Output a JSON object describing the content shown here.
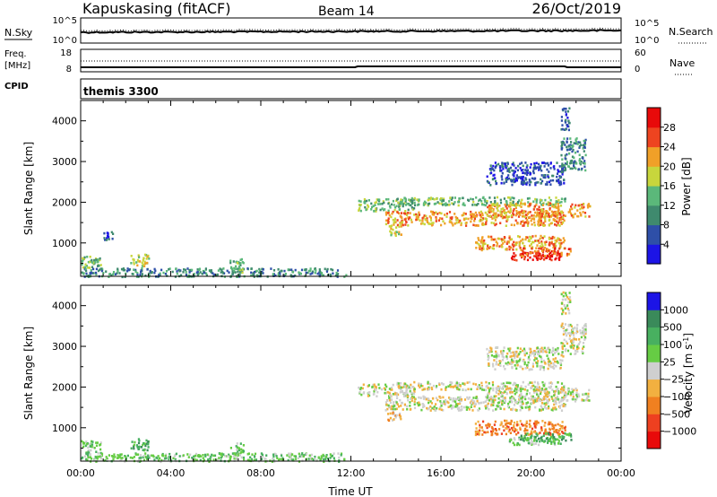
{
  "header": {
    "station": "Kapuskasing (fitACF)",
    "beam": "Beam 14",
    "date": "26/Oct/2019"
  },
  "noise_panel": {
    "left_label": "N.Sky",
    "left_ticks": [
      "10^5",
      "10^0"
    ],
    "right_ticks": [
      "10^5",
      "10^0"
    ],
    "right_label": "N.Search"
  },
  "freq_panel": {
    "label_top": "Freq.",
    "label_units": "[MHz]",
    "left_ticks": [
      "18",
      "8"
    ],
    "right_ticks": [
      "60",
      "0"
    ],
    "right_label": "Nave"
  },
  "cpid": {
    "label": "CPID",
    "value": "themis 3300"
  },
  "chart_data": [
    {
      "type": "heatmap",
      "quantity": "power",
      "xlabel": "Time UT",
      "ylabel": "Slant Range [km]",
      "x_range_hours": [
        0,
        24
      ],
      "x_ticks": [
        "00:00",
        "04:00",
        "08:00",
        "12:00",
        "16:00",
        "20:00",
        "00:00"
      ],
      "ylim": [
        180,
        4500
      ],
      "y_ticks": [
        1000,
        2000,
        3000,
        4000
      ],
      "colorbar": {
        "label": "Power [dB]",
        "tick_labels": [
          "4",
          "8",
          "12",
          "16",
          "20",
          "24",
          "28"
        ],
        "colors": [
          "#1c14e6",
          "#2e4fa8",
          "#3f8a6e",
          "#5bb87a",
          "#c8d63c",
          "#f0a028",
          "#ee4420",
          "#e80a0a"
        ]
      },
      "regions": [
        {
          "t": [
            0.0,
            0.9
          ],
          "r": [
            400,
            700
          ],
          "level": 3
        },
        {
          "t": [
            0.0,
            11.8
          ],
          "r": [
            190,
            400
          ],
          "level": 2
        },
        {
          "t": [
            1.0,
            1.4
          ],
          "r": [
            1100,
            1300
          ],
          "level": 1
        },
        {
          "t": [
            2.2,
            3.0
          ],
          "r": [
            450,
            750
          ],
          "level": 4
        },
        {
          "t": [
            6.6,
            7.2
          ],
          "r": [
            300,
            650
          ],
          "level": 3
        },
        {
          "t": [
            12.3,
            14.8
          ],
          "r": [
            1800,
            2100
          ],
          "level": 3
        },
        {
          "t": [
            13.5,
            21.5
          ],
          "r": [
            1450,
            1800
          ],
          "level": 5
        },
        {
          "t": [
            14.0,
            21.5
          ],
          "r": [
            1950,
            2150
          ],
          "level": 3
        },
        {
          "t": [
            13.6,
            14.2
          ],
          "r": [
            1200,
            1450
          ],
          "level": 4
        },
        {
          "t": [
            18.0,
            22.6
          ],
          "r": [
            1650,
            2000
          ],
          "level": 5
        },
        {
          "t": [
            17.5,
            21.5
          ],
          "r": [
            850,
            1200
          ],
          "level": 5
        },
        {
          "t": [
            19.0,
            21.3
          ],
          "r": [
            600,
            800
          ],
          "level": 7
        },
        {
          "t": [
            19.5,
            21.8
          ],
          "r": [
            700,
            900
          ],
          "level": 6
        },
        {
          "t": [
            18.0,
            21.5
          ],
          "r": [
            2450,
            3000
          ],
          "level": 1
        },
        {
          "t": [
            21.3,
            22.4
          ],
          "r": [
            2800,
            3600
          ],
          "level": 2
        },
        {
          "t": [
            21.3,
            21.7
          ],
          "r": [
            3800,
            4350
          ],
          "level": 1
        }
      ]
    },
    {
      "type": "heatmap",
      "quantity": "velocity",
      "xlabel": "Time UT",
      "ylabel": "Slant Range [km]",
      "x_range_hours": [
        0,
        24
      ],
      "x_ticks": [
        "00:00",
        "04:00",
        "08:00",
        "12:00",
        "16:00",
        "20:00",
        "00:00"
      ],
      "ylim": [
        180,
        4500
      ],
      "y_ticks": [
        1000,
        2000,
        3000,
        4000
      ],
      "colorbar": {
        "label": "Velocity [m s^-1]",
        "tick_labels": [
          "1000",
          "500",
          "100",
          "25",
          "−25",
          "−100",
          "−500",
          "−1000"
        ],
        "colors": [
          "#1c14e6",
          "#3a8a5a",
          "#48b060",
          "#66cc44",
          "#cfcfcf",
          "#f2b040",
          "#f08020",
          "#ee4020",
          "#e80a0a"
        ]
      },
      "regions": [
        {
          "t": [
            0.0,
            0.9
          ],
          "r": [
            400,
            700
          ],
          "level": 3
        },
        {
          "t": [
            0.0,
            11.8
          ],
          "r": [
            190,
            400
          ],
          "level": 3
        },
        {
          "t": [
            2.2,
            3.0
          ],
          "r": [
            450,
            750
          ],
          "level": 2
        },
        {
          "t": [
            6.6,
            7.2
          ],
          "r": [
            300,
            650
          ],
          "level": 3
        },
        {
          "t": [
            12.3,
            14.8
          ],
          "r": [
            1800,
            2100
          ],
          "level": 4
        },
        {
          "t": [
            13.5,
            21.5
          ],
          "r": [
            1450,
            1800
          ],
          "level": 4
        },
        {
          "t": [
            14.0,
            21.5
          ],
          "r": [
            1950,
            2150
          ],
          "level": 4
        },
        {
          "t": [
            13.6,
            14.2
          ],
          "r": [
            1200,
            1450
          ],
          "level": 5
        },
        {
          "t": [
            18.0,
            22.6
          ],
          "r": [
            1650,
            2000
          ],
          "level": 4
        },
        {
          "t": [
            17.5,
            21.5
          ],
          "r": [
            850,
            1200
          ],
          "level": 6
        },
        {
          "t": [
            19.0,
            21.3
          ],
          "r": [
            600,
            800
          ],
          "level": 3
        },
        {
          "t": [
            19.5,
            21.8
          ],
          "r": [
            700,
            900
          ],
          "level": 2
        },
        {
          "t": [
            18.0,
            21.5
          ],
          "r": [
            2450,
            3000
          ],
          "level": 4
        },
        {
          "t": [
            21.3,
            22.4
          ],
          "r": [
            2800,
            3600
          ],
          "level": 4
        },
        {
          "t": [
            21.3,
            21.7
          ],
          "r": [
            3800,
            4350
          ],
          "level": 4
        }
      ]
    }
  ]
}
